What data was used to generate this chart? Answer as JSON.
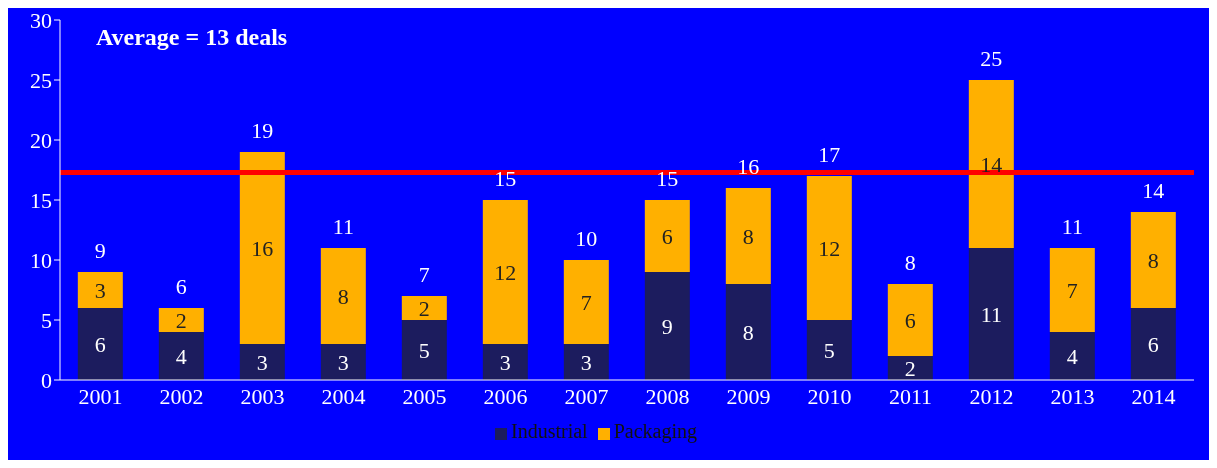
{
  "chart_data": {
    "type": "bar",
    "stacked": true,
    "categories": [
      "2001",
      "2002",
      "2003",
      "2004",
      "2005",
      "2006",
      "2007",
      "2008",
      "2009",
      "2010",
      "2011",
      "2012",
      "2013",
      "2014"
    ],
    "series": [
      {
        "name": "Industrial",
        "color": "#1c1c5e",
        "values": [
          6,
          4,
          3,
          3,
          5,
          3,
          3,
          9,
          8,
          5,
          2,
          11,
          4,
          6
        ]
      },
      {
        "name": "Packaging",
        "color": "#ffb000",
        "values": [
          3,
          2,
          16,
          8,
          2,
          12,
          7,
          6,
          8,
          12,
          6,
          14,
          7,
          8
        ]
      }
    ],
    "totals": [
      "9",
      "6",
      "19",
      "11",
      "7",
      "15",
      "10",
      "15",
      "16",
      "17",
      "8",
      "25",
      "11",
      "14"
    ],
    "data_labels": true,
    "ylim": [
      0,
      30
    ],
    "yticks": [
      0,
      5,
      10,
      15,
      20,
      25,
      30
    ],
    "grid": false,
    "legend": "bottom",
    "ref_lines": [
      {
        "axis": "y",
        "value": 17.3,
        "color": "#ff0000"
      }
    ],
    "annotations": [
      "Average = 13 deals"
    ]
  }
}
